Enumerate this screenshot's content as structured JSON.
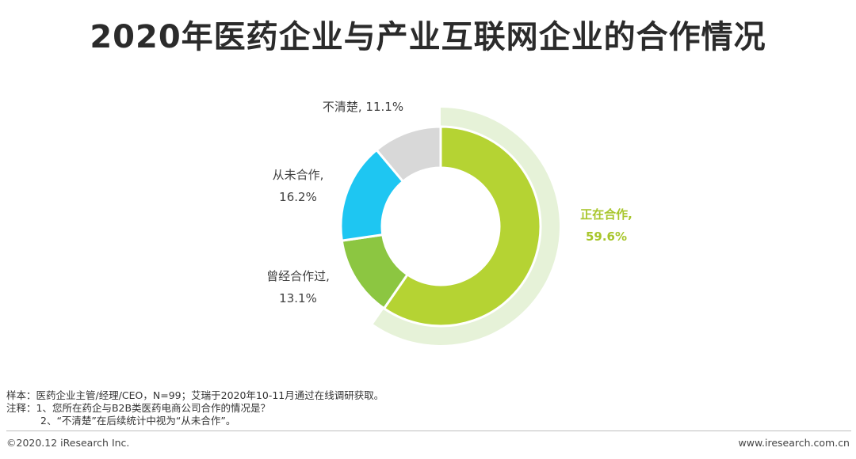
{
  "title": "2020年医药企业与产业互联网企业的合作情况",
  "chart_data": {
    "type": "pie",
    "donut": true,
    "title": "2020年医药企业与产业互联网企业的合作情况",
    "slices": [
      {
        "label": "正在合作,",
        "value": 59.6,
        "value_label": "59.6%",
        "color": "#b5d333",
        "highlight": true
      },
      {
        "label": "曾经合作过,",
        "value": 13.1,
        "value_label": "13.1%",
        "color": "#8cc641"
      },
      {
        "label": "从未合作,",
        "value": 16.2,
        "value_label": "16.2%",
        "color": "#1ec6f2"
      },
      {
        "label": "不清楚,",
        "value": 11.1,
        "value_label": "11.1%",
        "color": "#d8d8d8"
      }
    ],
    "highlight_color": "#e6f2d8",
    "label_color_default": "#404040",
    "label_color_highlight": "#a8c62c"
  },
  "notes": {
    "sample": "样本：医药企业主管/经理/CEO，N=99；艾瑞于2020年10-11月通过在线调研获取。",
    "note1": "注释：1、您所在药企与B2B类医药电商公司合作的情况是？",
    "note2": "2、“不清楚”在后续统计中视为“从未合作”。"
  },
  "footer": {
    "copyright": "©2020.12 iResearch Inc.",
    "website": "www.iresearch.com.cn"
  }
}
